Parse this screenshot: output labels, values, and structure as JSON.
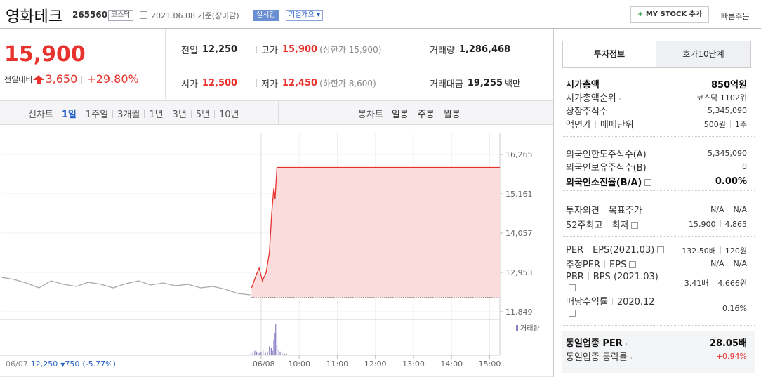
{
  "header": {
    "name": "영화테크",
    "code": "265560",
    "market": "코스닥",
    "date": "2021.06.08 기준(장마감)",
    "realtime": "실시간",
    "company_info": "기업개요",
    "my_stock": "MY STOCK 추가",
    "quick_order": "빠른주문"
  },
  "price": {
    "current": "15,900",
    "change_label": "전일대비",
    "change": "3,650",
    "change_pct": "+29.80%"
  },
  "summary": [
    [
      {
        "label": "전일",
        "value": "12,250"
      },
      {
        "label": "고가",
        "value": "15,900",
        "note": "(상한가 15,900)"
      },
      {
        "label": "거래량",
        "value": "1,286,468"
      }
    ],
    [
      {
        "label": "시가",
        "value": "12,500"
      },
      {
        "label": "저가",
        "value": "12,450",
        "note": "(하한가 8,600)"
      },
      {
        "label": "거래대금",
        "value": "19,255",
        "unit": "백만"
      }
    ]
  ],
  "tabs": {
    "line_label": "선차트",
    "line_periods": [
      "1일",
      "1주일",
      "3개월",
      "1년",
      "3년",
      "5년",
      "10년"
    ],
    "candle_label": "봉차트",
    "candle_periods": [
      "일봉",
      "주봉",
      "월봉"
    ]
  },
  "chart": {
    "type": "line",
    "ylim": [
      11849,
      16265
    ],
    "yticks": [
      {
        "value": 16265,
        "label": "16,265"
      },
      {
        "value": 15161,
        "label": "15,161"
      },
      {
        "value": 14057,
        "label": "14,057"
      },
      {
        "value": 12953,
        "label": "12,953"
      },
      {
        "value": 11849,
        "label": "11,849"
      }
    ],
    "xlim": [
      131,
      916
    ],
    "xticks": [
      {
        "value": 540,
        "label": "06/08"
      },
      {
        "value": 600,
        "label": "10:00"
      },
      {
        "value": 660,
        "label": "11:00"
      },
      {
        "value": 720,
        "label": "12:00"
      },
      {
        "value": 780,
        "label": "13:00"
      },
      {
        "value": 840,
        "label": "14:00"
      },
      {
        "value": 900,
        "label": "15:00"
      }
    ],
    "prev_close": 12250,
    "prev_info": {
      "date": "06/07",
      "close": "12,250",
      "change": "750",
      "change_pct": "(-5.77%)"
    },
    "series": [
      {
        "color": "#a9a9a9",
        "x": [
          131,
          151,
          170,
          190,
          209,
          229,
          249,
          268,
          288,
          307,
          327,
          347,
          366,
          386,
          405,
          425,
          445,
          464,
          484,
          503,
          523
        ],
        "values": [
          12815,
          12756,
          12657,
          12519,
          12716,
          12618,
          12559,
          12677,
          12618,
          12519,
          12637,
          12716,
          12598,
          12657,
          12578,
          12618,
          12519,
          12559,
          12480,
          12361,
          12322
        ]
      },
      {
        "color": "#e8322d",
        "fill": "#fbdcdc",
        "x": [
          525,
          533,
          537,
          542,
          548,
          553,
          557,
          560,
          562,
          565,
          916
        ],
        "values": [
          12519,
          12913,
          13071,
          12716,
          12953,
          13505,
          14687,
          15318,
          15022,
          15900,
          15900
        ]
      }
    ],
    "volume": {
      "name": "거래량",
      "color": "#8d80c6",
      "x": [
        524,
        527,
        530,
        533,
        537,
        540,
        543,
        547,
        550,
        553,
        556,
        558,
        560,
        562,
        563,
        565,
        568,
        570,
        573,
        577,
        580
      ],
      "values": [
        14000,
        10500,
        21000,
        17500,
        10500,
        14000,
        28000,
        10500,
        17500,
        42000,
        35000,
        21000,
        70000,
        105000,
        150000,
        49000,
        28000,
        17500,
        10500,
        7000,
        7000
      ]
    }
  },
  "info": {
    "tabs": [
      "투자정보",
      "호가10단계"
    ],
    "sections": [
      [
        {
          "label": [
            "시가총액"
          ],
          "value": [
            "850억원"
          ]
        },
        {
          "label": [
            "시가총액순위"
          ],
          "value": [
            "코스닥 1102위"
          ]
        },
        {
          "label": [
            "상장주식수"
          ],
          "value": [
            "5,345,090"
          ]
        },
        {
          "label": [
            "액면가",
            "매매단위"
          ],
          "value": [
            "500원",
            "1주"
          ]
        }
      ],
      [
        {
          "label": [
            "외국인한도주식수(A)"
          ],
          "value": [
            "5,345,090"
          ]
        },
        {
          "label": [
            "외국인보유주식수(B)"
          ],
          "value": [
            "0"
          ]
        },
        {
          "label": [
            "외국인소진율(B/A)"
          ],
          "value": [
            "0.00%"
          ]
        }
      ],
      [
        {
          "label": [
            "투자의견",
            "목표주가"
          ],
          "value": [
            "N/A",
            "N/A"
          ]
        },
        {
          "label": [
            "52주최고",
            "최저"
          ],
          "value": [
            "15,900",
            "4,865"
          ]
        }
      ],
      [
        {
          "label": [
            "PER",
            "EPS(2021.03)"
          ],
          "value": [
            "132.50배",
            "120원"
          ]
        },
        {
          "label": [
            "추정PER",
            "EPS"
          ],
          "value": [
            "N/A",
            "N/A"
          ]
        },
        {
          "label": [
            "PBR",
            "BPS (2021.03)"
          ],
          "value": [
            "3.41배",
            "4,666원"
          ]
        },
        {
          "label": [
            "배당수익률",
            "2020.12"
          ],
          "value": [
            "0.16%"
          ]
        }
      ],
      [
        {
          "label": [
            "동일업종 PER"
          ],
          "value": [
            "28.05배"
          ]
        },
        {
          "label": [
            "동일업종 등락률"
          ],
          "value": [
            "+0.94%"
          ]
        }
      ]
    ]
  }
}
